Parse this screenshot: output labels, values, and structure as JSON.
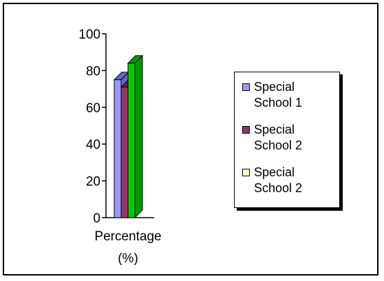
{
  "chart_data": {
    "type": "bar",
    "categories": [
      "Percentage\n(%)"
    ],
    "series": [
      {
        "name": "Special\nSchool 1",
        "values": [
          75
        ],
        "color": "#9999ff",
        "dark": "#6666cc"
      },
      {
        "name": "Special\nSchool 2",
        "values": [
          71
        ],
        "color": "#993366",
        "dark": "#6b2347"
      },
      {
        "name": "Special\nSchool 2",
        "values": [
          84
        ],
        "color": "#00cc00",
        "dark": "#009900",
        "legend_color": "#ffffcc"
      }
    ],
    "yticks": [
      "0",
      "20",
      "40",
      "60",
      "80",
      "100"
    ],
    "ylim": [
      0,
      100
    ],
    "legend_position": "right",
    "grid": false
  }
}
